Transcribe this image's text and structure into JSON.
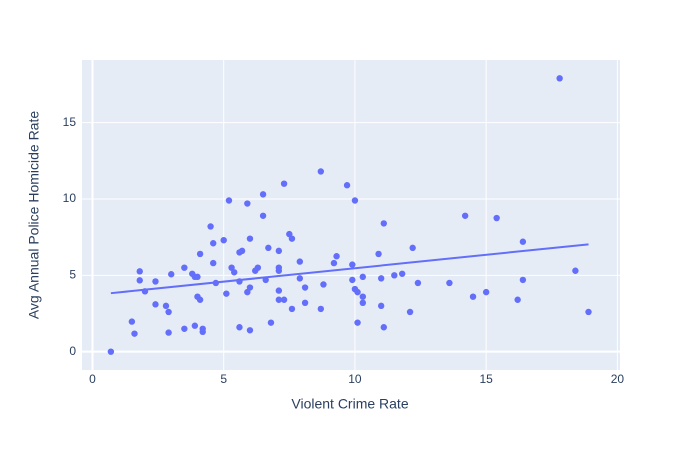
{
  "chart_data": {
    "type": "scatter",
    "x_label": "Violent Crime Rate",
    "y_label": "Avg Annual Police Homicide Rate",
    "color": "#636efa",
    "grid": true,
    "xlim": [
      -0.4,
      20.1
    ],
    "ylim": [
      -1.2,
      19.1
    ],
    "xticks": [
      0,
      5,
      10,
      15,
      20
    ],
    "yticks": [
      0,
      5,
      10,
      15
    ],
    "x": [
      0.7,
      1.5,
      1.6,
      1.8,
      1.8,
      2.0,
      2.4,
      2.4,
      2.8,
      2.9,
      2.9,
      3.0,
      3.5,
      3.5,
      3.8,
      3.9,
      3.9,
      4.0,
      4.0,
      4.1,
      4.1,
      4.2,
      4.2,
      4.5,
      4.6,
      4.6,
      4.7,
      5.0,
      5.1,
      5.2,
      5.3,
      5.4,
      5.6,
      5.7,
      5.6,
      5.6,
      5.9,
      5.9,
      6.0,
      6.0,
      6.0,
      6.2,
      6.3,
      6.5,
      6.5,
      6.6,
      6.7,
      6.8,
      7.1,
      7.1,
      7.1,
      7.1,
      7.1,
      7.3,
      7.3,
      7.5,
      7.6,
      7.6,
      7.9,
      7.9,
      8.1,
      8.1,
      8.7,
      8.8,
      8.7,
      9.2,
      9.3,
      9.7,
      9.9,
      9.9,
      10.0,
      10.0,
      10.1,
      10.1,
      10.3,
      10.3,
      10.3,
      10.9,
      11.0,
      11.0,
      11.1,
      11.1,
      11.5,
      11.8,
      12.2,
      12.1,
      12.4,
      13.6,
      14.2,
      14.5,
      15.0,
      15.4,
      16.2,
      16.4,
      16.4,
      17.8,
      18.4,
      18.9
    ],
    "y": [
      0.0,
      1.97,
      1.18,
      5.26,
      4.67,
      3.95,
      4.6,
      3.1,
      3.0,
      2.6,
      1.25,
      5.07,
      5.5,
      1.5,
      5.1,
      1.7,
      4.9,
      4.9,
      3.6,
      3.4,
      6.4,
      1.5,
      1.3,
      8.2,
      7.1,
      5.8,
      4.5,
      7.3,
      3.8,
      9.9,
      5.5,
      5.2,
      6.5,
      6.6,
      4.6,
      1.6,
      9.7,
      3.9,
      4.2,
      7.4,
      1.4,
      5.3,
      5.5,
      8.9,
      10.3,
      4.7,
      6.8,
      1.9,
      5.5,
      5.3,
      4.0,
      3.4,
      6.6,
      11.0,
      3.4,
      7.7,
      7.4,
      2.8,
      5.9,
      4.8,
      4.2,
      3.2,
      11.8,
      4.4,
      2.8,
      5.8,
      6.25,
      10.9,
      4.7,
      5.7,
      9.9,
      4.1,
      3.9,
      1.9,
      4.9,
      3.6,
      3.2,
      6.4,
      4.8,
      3.0,
      8.4,
      1.6,
      5.0,
      5.1,
      6.8,
      2.6,
      4.5,
      4.5,
      8.9,
      3.6,
      3.9,
      8.75,
      3.4,
      7.2,
      4.7,
      17.9,
      5.3,
      2.6
    ],
    "trendline": {
      "x": [
        0.7,
        18.9
      ],
      "y": [
        3.83,
        7.03
      ]
    }
  }
}
